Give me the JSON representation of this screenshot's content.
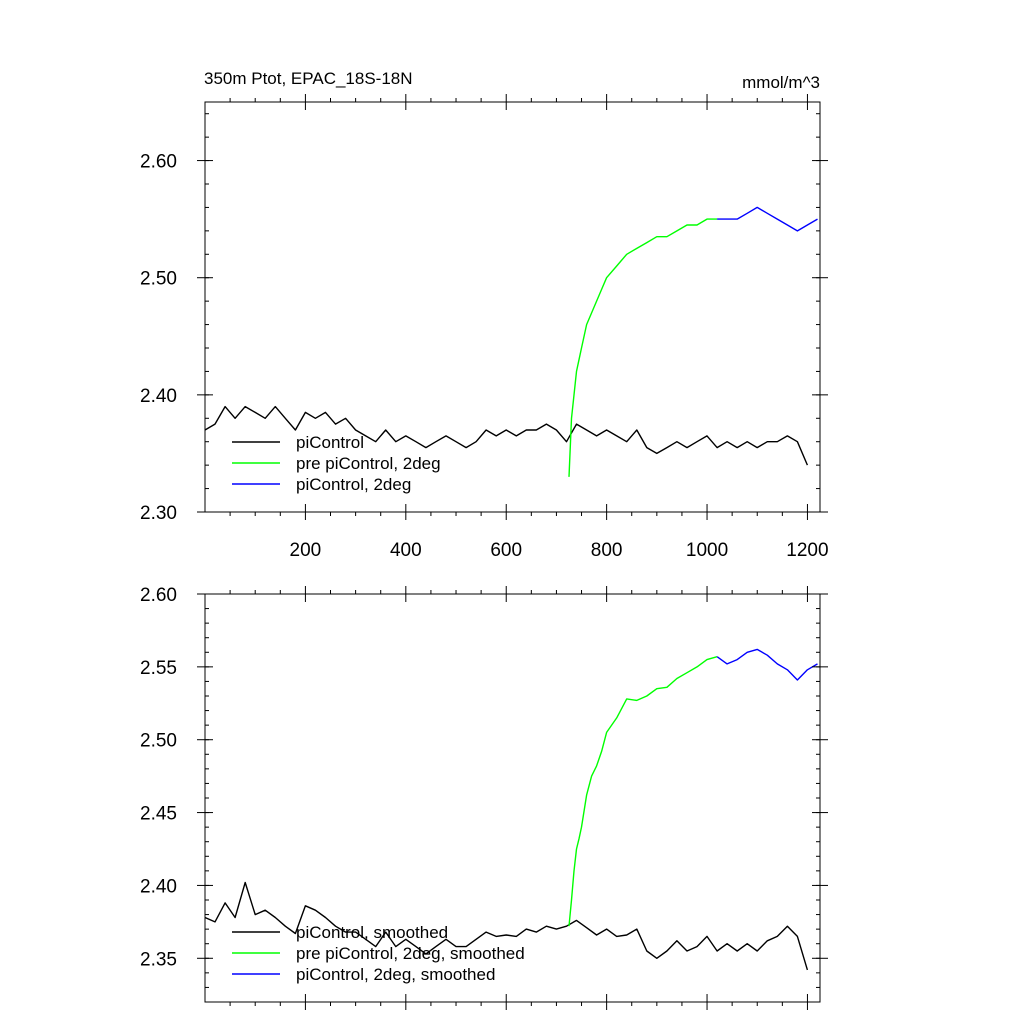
{
  "chart_data": [
    {
      "type": "line",
      "title": "350m Ptot, EPAC_18S-18N",
      "units": "mmol/m^3",
      "xlim": [
        0,
        1225
      ],
      "ylim": [
        2.3,
        2.65
      ],
      "x_ticks": [
        200,
        400,
        600,
        800,
        1000,
        1200
      ],
      "x_tick_labels": [
        "200",
        "400",
        "600",
        "800",
        "1000",
        "1200"
      ],
      "y_ticks": [
        2.3,
        2.4,
        2.5,
        2.6
      ],
      "y_tick_labels": [
        "2.30",
        "2.40",
        "2.50",
        "2.60"
      ],
      "legend_position": "bottom-left",
      "series": [
        {
          "name": "piControl",
          "color": "#000000",
          "x": [
            0,
            20,
            40,
            60,
            80,
            100,
            120,
            140,
            160,
            180,
            200,
            220,
            240,
            260,
            280,
            300,
            320,
            340,
            360,
            380,
            400,
            420,
            440,
            460,
            480,
            500,
            520,
            540,
            560,
            580,
            600,
            620,
            640,
            660,
            680,
            700,
            720,
            740,
            760,
            780,
            800,
            820,
            840,
            860,
            880,
            900,
            920,
            940,
            960,
            980,
            1000,
            1020,
            1040,
            1060,
            1080,
            1100,
            1120,
            1140,
            1160,
            1180,
            1200
          ],
          "y": [
            2.37,
            2.375,
            2.39,
            2.38,
            2.39,
            2.385,
            2.38,
            2.39,
            2.38,
            2.37,
            2.385,
            2.38,
            2.385,
            2.375,
            2.38,
            2.37,
            2.365,
            2.36,
            2.37,
            2.36,
            2.365,
            2.36,
            2.355,
            2.36,
            2.365,
            2.36,
            2.355,
            2.36,
            2.37,
            2.365,
            2.37,
            2.365,
            2.37,
            2.37,
            2.375,
            2.37,
            2.36,
            2.375,
            2.37,
            2.365,
            2.37,
            2.365,
            2.36,
            2.37,
            2.355,
            2.35,
            2.355,
            2.36,
            2.355,
            2.36,
            2.365,
            2.355,
            2.36,
            2.355,
            2.36,
            2.355,
            2.36,
            2.36,
            2.365,
            2.36,
            2.34
          ]
        },
        {
          "name": "pre piControl, 2deg",
          "color": "#00ff00",
          "x": [
            725,
            730,
            735,
            740,
            745,
            750,
            760,
            770,
            780,
            790,
            800,
            820,
            840,
            860,
            880,
            900,
            920,
            940,
            960,
            980,
            1000,
            1020
          ],
          "y": [
            2.33,
            2.38,
            2.4,
            2.42,
            2.43,
            2.44,
            2.46,
            2.47,
            2.48,
            2.49,
            2.5,
            2.51,
            2.52,
            2.525,
            2.53,
            2.535,
            2.535,
            2.54,
            2.545,
            2.545,
            2.55,
            2.55
          ]
        },
        {
          "name": "piControl, 2deg",
          "color": "#0000ff",
          "x": [
            1020,
            1040,
            1060,
            1080,
            1100,
            1120,
            1140,
            1160,
            1180,
            1200,
            1220
          ],
          "y": [
            2.55,
            2.55,
            2.55,
            2.555,
            2.56,
            2.555,
            2.55,
            2.545,
            2.54,
            2.545,
            2.55
          ]
        }
      ]
    },
    {
      "type": "line",
      "title": "",
      "xlim": [
        0,
        1225
      ],
      "ylim": [
        2.32,
        2.6
      ],
      "x_ticks": [
        200,
        400,
        600,
        800,
        1000,
        1200
      ],
      "y_ticks": [
        2.35,
        2.4,
        2.45,
        2.5,
        2.55,
        2.6
      ],
      "y_tick_labels": [
        "2.35",
        "2.40",
        "2.45",
        "2.50",
        "2.55",
        "2.60"
      ],
      "legend_position": "bottom-left",
      "series": [
        {
          "name": "piControl, smoothed",
          "color": "#000000",
          "x": [
            0,
            20,
            40,
            60,
            80,
            100,
            120,
            140,
            160,
            180,
            200,
            220,
            240,
            260,
            280,
            300,
            320,
            340,
            360,
            380,
            400,
            420,
            440,
            460,
            480,
            500,
            520,
            540,
            560,
            580,
            600,
            620,
            640,
            660,
            680,
            700,
            720,
            740,
            760,
            780,
            800,
            820,
            840,
            860,
            880,
            900,
            920,
            940,
            960,
            980,
            1000,
            1020,
            1040,
            1060,
            1080,
            1100,
            1120,
            1140,
            1160,
            1180,
            1200
          ],
          "y": [
            2.378,
            2.375,
            2.388,
            2.378,
            2.402,
            2.38,
            2.383,
            2.378,
            2.372,
            2.367,
            2.386,
            2.383,
            2.378,
            2.372,
            2.368,
            2.368,
            2.363,
            2.358,
            2.368,
            2.358,
            2.363,
            2.358,
            2.353,
            2.358,
            2.363,
            2.358,
            2.358,
            2.363,
            2.368,
            2.365,
            2.366,
            2.365,
            2.37,
            2.368,
            2.372,
            2.37,
            2.372,
            2.376,
            2.371,
            2.366,
            2.37,
            2.365,
            2.366,
            2.37,
            2.355,
            2.35,
            2.355,
            2.362,
            2.355,
            2.358,
            2.365,
            2.355,
            2.36,
            2.355,
            2.36,
            2.355,
            2.362,
            2.365,
            2.372,
            2.365,
            2.342
          ]
        },
        {
          "name": "pre piControl, 2deg, smoothed",
          "color": "#00ff00",
          "x": [
            725,
            730,
            735,
            740,
            745,
            750,
            760,
            770,
            780,
            790,
            800,
            820,
            840,
            860,
            880,
            900,
            920,
            940,
            960,
            980,
            1000,
            1020
          ],
          "y": [
            2.372,
            2.39,
            2.41,
            2.425,
            2.432,
            2.44,
            2.462,
            2.475,
            2.482,
            2.492,
            2.505,
            2.515,
            2.528,
            2.527,
            2.53,
            2.535,
            2.536,
            2.542,
            2.546,
            2.55,
            2.555,
            2.557
          ]
        },
        {
          "name": "piControl, 2deg, smoothed",
          "color": "#0000ff",
          "x": [
            1020,
            1040,
            1060,
            1080,
            1100,
            1120,
            1140,
            1160,
            1180,
            1200,
            1220
          ],
          "y": [
            2.557,
            2.552,
            2.555,
            2.56,
            2.562,
            2.558,
            2.552,
            2.548,
            2.541,
            2.548,
            2.552
          ]
        }
      ]
    }
  ]
}
